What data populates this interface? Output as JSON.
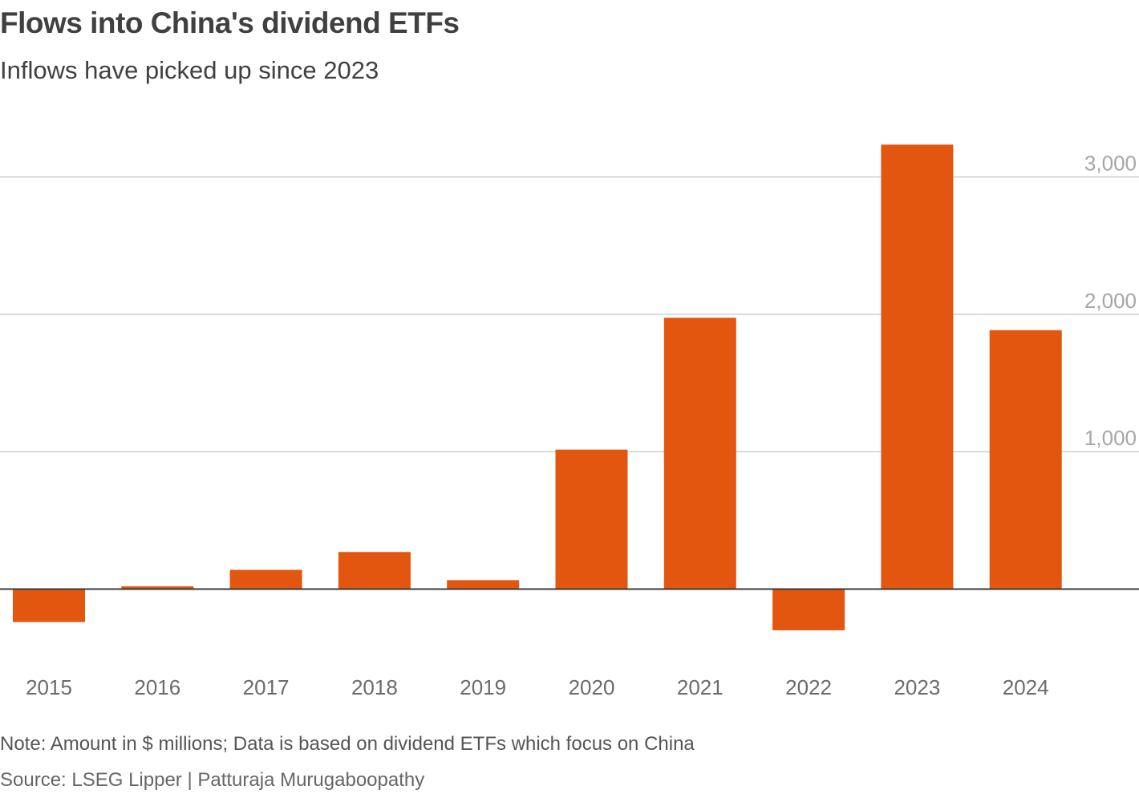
{
  "header": {
    "title": "Flows into China's dividend ETFs",
    "subtitle": "Inflows have picked up since 2023"
  },
  "footer": {
    "note": "Note: Amount in $ millions; Data is based on dividend ETFs which focus on China",
    "source": "Source: LSEG Lipper | Patturaja Murugaboopathy"
  },
  "colors": {
    "bar": "#e3560f",
    "grid": "#cfcfcf",
    "zero_line": "#3a3a3a",
    "tick_text": "#a6a6a6",
    "category_text": "#6b6b6b"
  },
  "chart_data": {
    "type": "bar",
    "title": "Flows into China's dividend ETFs",
    "subtitle": "Inflows have picked up since 2023",
    "xlabel": "",
    "ylabel": "",
    "unit": "$ millions",
    "categories": [
      "2015",
      "2016",
      "2017",
      "2018",
      "2019",
      "2020",
      "2021",
      "2022",
      "2023",
      "2024"
    ],
    "values": [
      -240,
      20,
      140,
      270,
      65,
      1015,
      1975,
      -300,
      3235,
      1885
    ],
    "ylim": [
      -400,
      3350
    ],
    "yticks": [
      1000,
      2000,
      3000
    ],
    "ytick_labels": [
      "1,000",
      "2,000",
      "3,000"
    ],
    "y_axis_side": "right",
    "grid": true
  }
}
